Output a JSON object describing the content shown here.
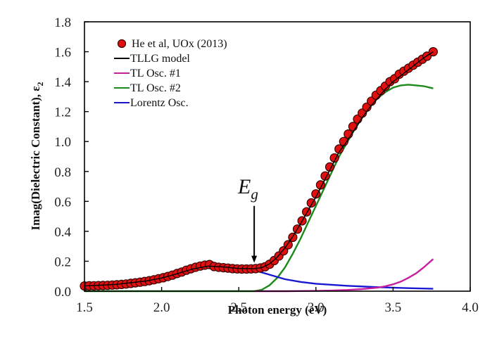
{
  "chart_data": {
    "type": "scatter",
    "title": "",
    "xlabel": "Photon energy (eV)",
    "ylabel": "Imag(Dielectric Constant), ε",
    "ylabel_subscript": "2",
    "xlim": [
      1.5,
      4.0
    ],
    "ylim": [
      0.0,
      1.8
    ],
    "xticks": [
      "1.5",
      "2.0",
      "2.5",
      "3.0",
      "3.5",
      "4.0"
    ],
    "yticks": [
      "0.0",
      "0.2",
      "0.4",
      "0.6",
      "0.8",
      "1.0",
      "1.2",
      "1.4",
      "1.6",
      "1.8"
    ],
    "grid": false,
    "legend_position": "top-left",
    "annotation": {
      "text": "E",
      "subscript": "g",
      "x": 2.6,
      "arrow_from_y": 0.57,
      "arrow_to_y": 0.19
    },
    "series": [
      {
        "name": "He et al, UOx (2013)",
        "kind": "markers",
        "color": "#e01010",
        "x": [
          1.5,
          1.53,
          1.56,
          1.59,
          1.62,
          1.65,
          1.68,
          1.71,
          1.74,
          1.77,
          1.8,
          1.83,
          1.86,
          1.89,
          1.92,
          1.95,
          1.98,
          2.01,
          2.04,
          2.07,
          2.1,
          2.13,
          2.16,
          2.19,
          2.22,
          2.25,
          2.28,
          2.31,
          2.34,
          2.37,
          2.4,
          2.43,
          2.46,
          2.49,
          2.52,
          2.55,
          2.58,
          2.61,
          2.64,
          2.67,
          2.7,
          2.73,
          2.76,
          2.79,
          2.82,
          2.85,
          2.88,
          2.91,
          2.94,
          2.97,
          3.0,
          3.03,
          3.06,
          3.09,
          3.12,
          3.15,
          3.18,
          3.21,
          3.24,
          3.27,
          3.3,
          3.33,
          3.36,
          3.39,
          3.42,
          3.45,
          3.48,
          3.51,
          3.54,
          3.57,
          3.6,
          3.63,
          3.66,
          3.69,
          3.72,
          3.76
        ],
        "y": [
          0.035,
          0.036,
          0.036,
          0.037,
          0.038,
          0.039,
          0.041,
          0.043,
          0.045,
          0.048,
          0.052,
          0.056,
          0.06,
          0.065,
          0.07,
          0.076,
          0.083,
          0.09,
          0.098,
          0.107,
          0.118,
          0.128,
          0.14,
          0.15,
          0.16,
          0.168,
          0.174,
          0.178,
          0.165,
          0.16,
          0.157,
          0.154,
          0.151,
          0.149,
          0.148,
          0.148,
          0.149,
          0.151,
          0.155,
          0.163,
          0.18,
          0.205,
          0.235,
          0.27,
          0.31,
          0.36,
          0.415,
          0.47,
          0.53,
          0.59,
          0.65,
          0.71,
          0.77,
          0.83,
          0.89,
          0.95,
          1.0,
          1.05,
          1.1,
          1.15,
          1.19,
          1.23,
          1.27,
          1.31,
          1.34,
          1.37,
          1.4,
          1.42,
          1.45,
          1.47,
          1.49,
          1.51,
          1.53,
          1.55,
          1.57,
          1.6
        ]
      },
      {
        "name": "TLLG model",
        "kind": "line",
        "color": "#000000",
        "x": [
          1.5,
          1.7,
          1.9,
          2.0,
          2.1,
          2.2,
          2.3,
          2.4,
          2.5,
          2.6,
          2.65,
          2.7,
          2.75,
          2.8,
          2.85,
          2.9,
          2.95,
          3.0,
          3.05,
          3.1,
          3.15,
          3.2,
          3.25,
          3.3,
          3.35,
          3.4,
          3.45,
          3.5,
          3.55,
          3.6,
          3.65,
          3.7,
          3.76
        ],
        "y": [
          0.035,
          0.045,
          0.068,
          0.088,
          0.116,
          0.148,
          0.168,
          0.162,
          0.152,
          0.15,
          0.158,
          0.183,
          0.228,
          0.29,
          0.365,
          0.45,
          0.54,
          0.63,
          0.73,
          0.83,
          0.93,
          1.0,
          1.08,
          1.16,
          1.23,
          1.29,
          1.35,
          1.4,
          1.44,
          1.48,
          1.52,
          1.56,
          1.6
        ]
      },
      {
        "name": "TL Osc. #1",
        "kind": "line",
        "color": "#c81ea0",
        "x": [
          2.6,
          2.8,
          3.0,
          3.1,
          3.2,
          3.3,
          3.4,
          3.45,
          3.5,
          3.55,
          3.6,
          3.65,
          3.7,
          3.76
        ],
        "y": [
          0.0,
          0.0,
          0.002,
          0.004,
          0.008,
          0.014,
          0.024,
          0.033,
          0.046,
          0.064,
          0.09,
          0.12,
          0.16,
          0.215
        ]
      },
      {
        "name": "TL Osc. #2",
        "kind": "line",
        "color": "#1a8a1a",
        "x": [
          1.5,
          2.6,
          2.65,
          2.7,
          2.75,
          2.8,
          2.85,
          2.9,
          2.95,
          3.0,
          3.05,
          3.1,
          3.15,
          3.2,
          3.25,
          3.3,
          3.35,
          3.4,
          3.45,
          3.5,
          3.55,
          3.6,
          3.65,
          3.7,
          3.76
        ],
        "y": [
          0.0,
          0.0,
          0.01,
          0.04,
          0.09,
          0.16,
          0.25,
          0.35,
          0.46,
          0.57,
          0.68,
          0.79,
          0.9,
          0.99,
          1.08,
          1.16,
          1.23,
          1.29,
          1.33,
          1.36,
          1.375,
          1.38,
          1.375,
          1.37,
          1.355
        ]
      },
      {
        "name": "Lorentz Osc.",
        "kind": "line",
        "color": "#1818d0",
        "x": [
          1.5,
          1.6,
          1.7,
          1.8,
          1.9,
          2.0,
          2.1,
          2.2,
          2.3,
          2.4,
          2.5,
          2.6,
          2.7,
          2.8,
          2.9,
          3.0,
          3.2,
          3.4,
          3.6,
          3.76
        ],
        "y": [
          0.035,
          0.038,
          0.044,
          0.053,
          0.068,
          0.088,
          0.113,
          0.138,
          0.155,
          0.16,
          0.155,
          0.14,
          0.11,
          0.08,
          0.062,
          0.05,
          0.036,
          0.027,
          0.02,
          0.016
        ]
      }
    ]
  }
}
